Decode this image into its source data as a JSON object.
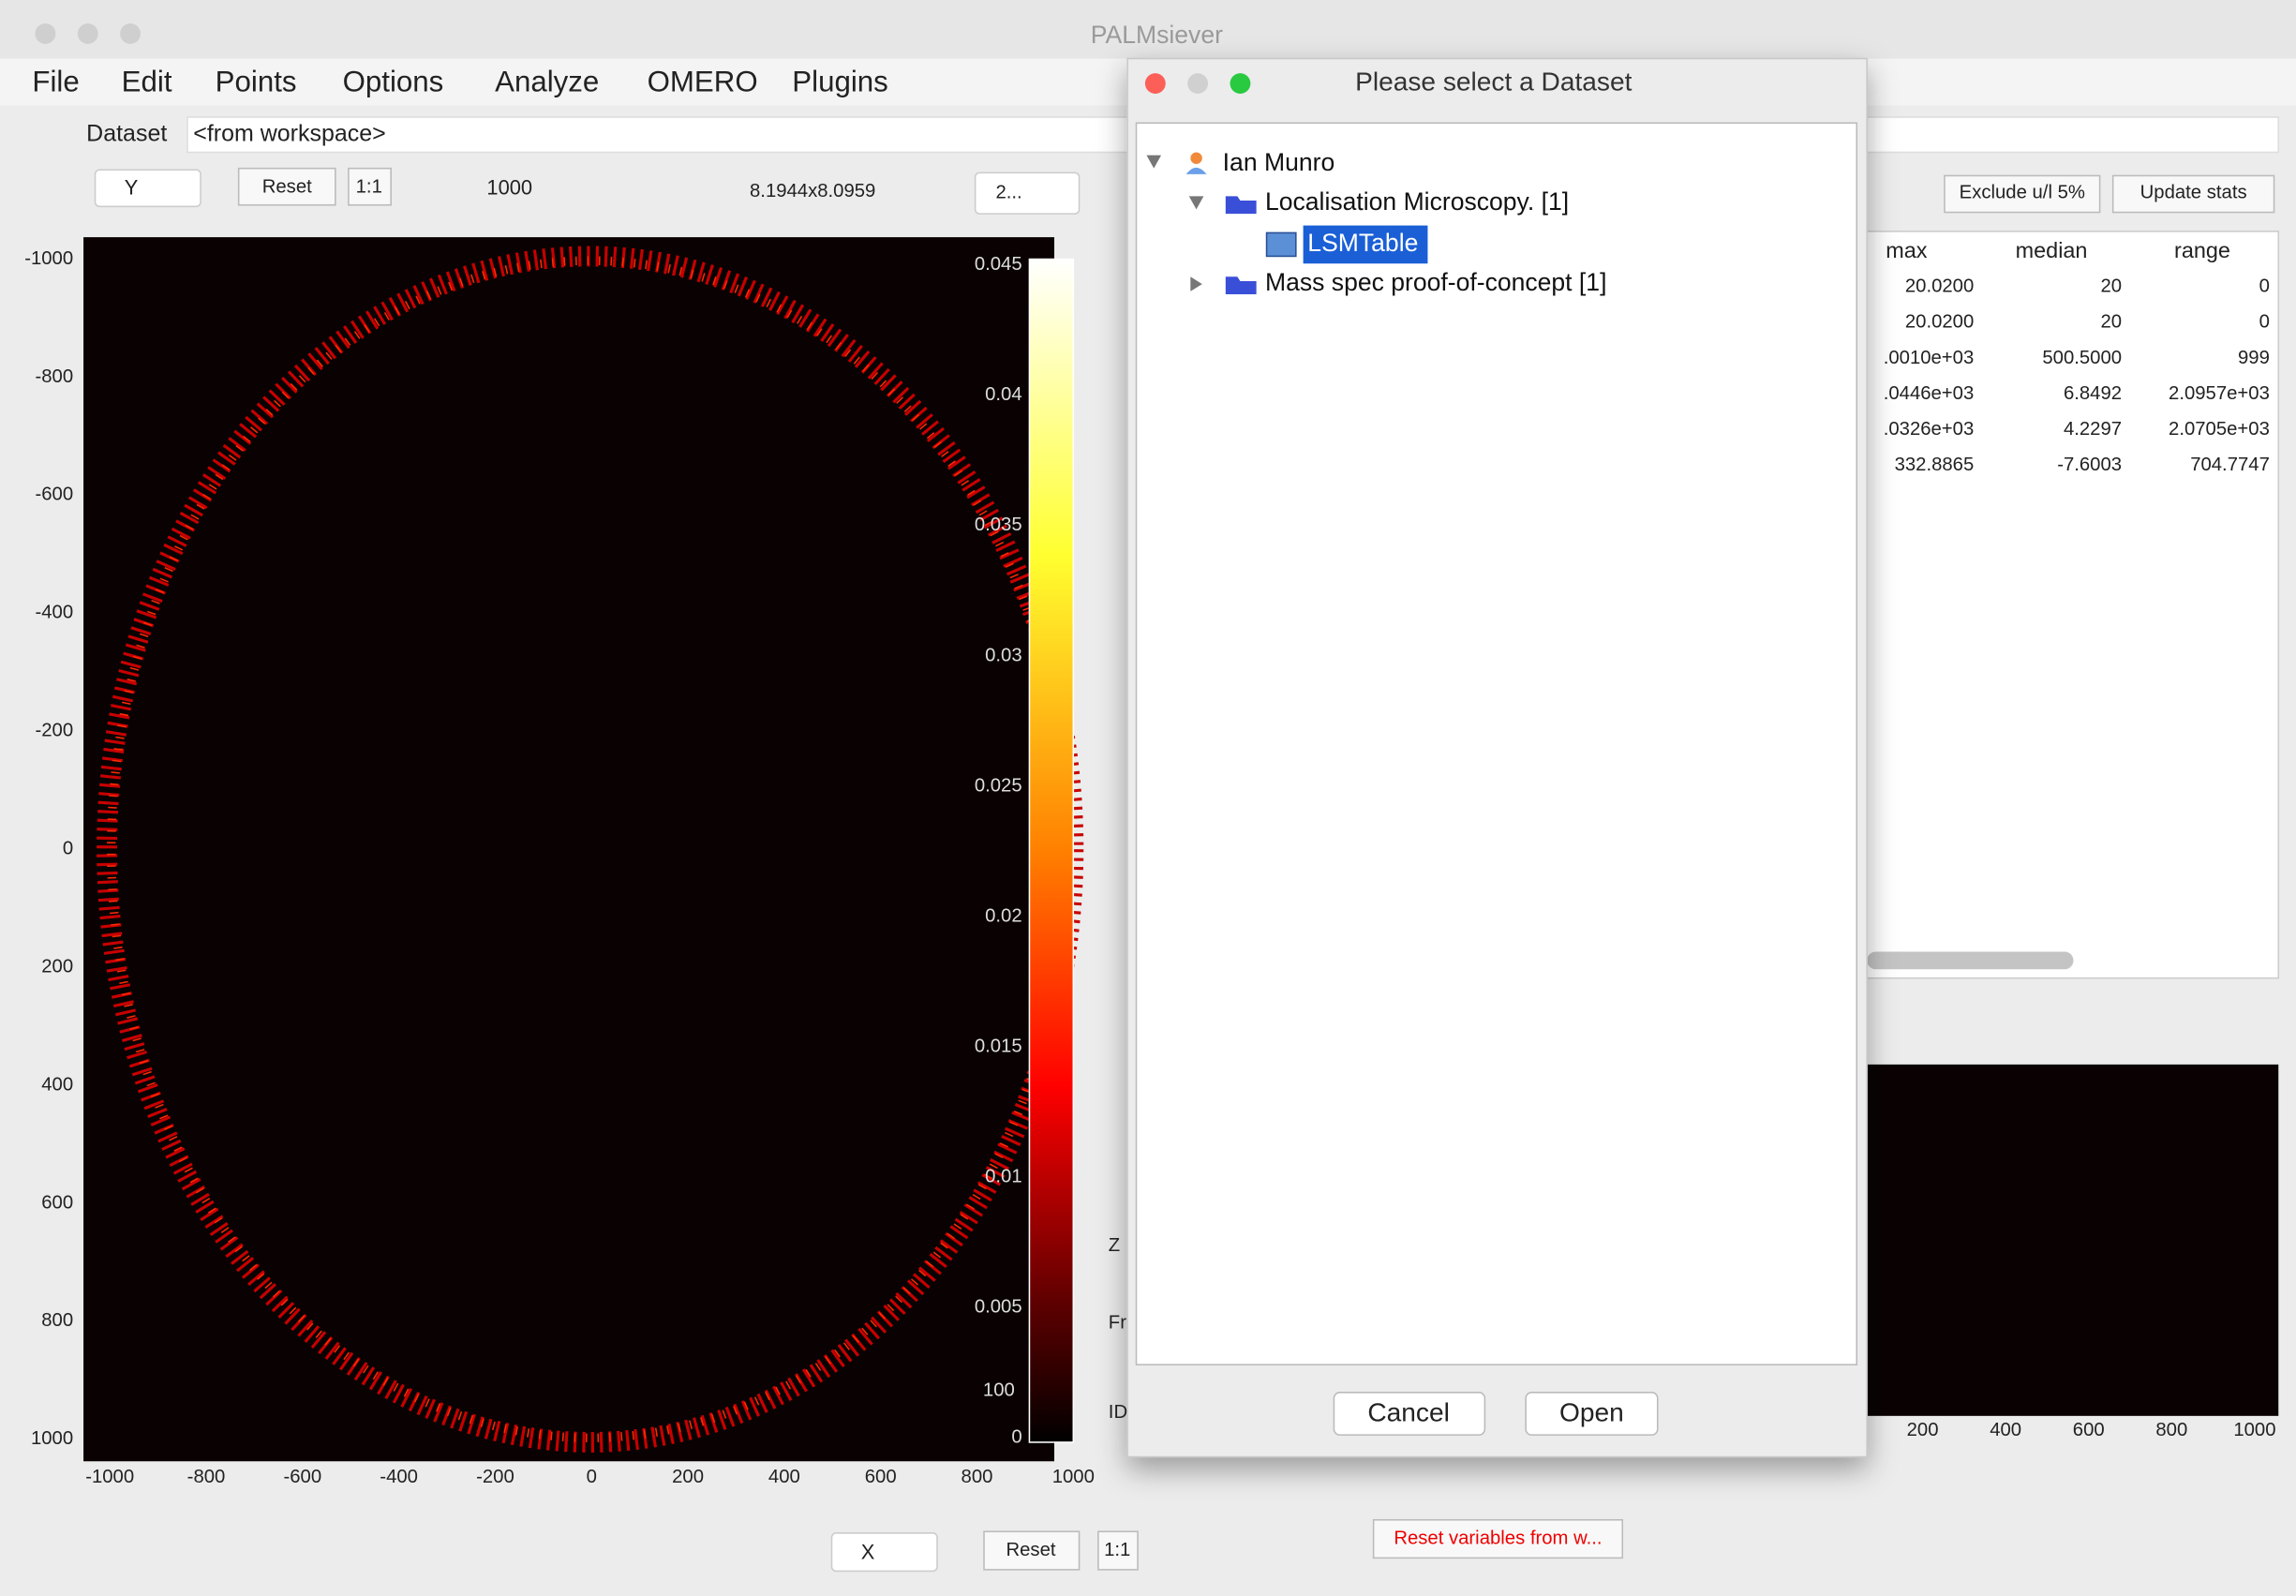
{
  "window": {
    "title": "PALMsiever"
  },
  "menu": [
    "File",
    "Edit",
    "Points",
    "Options",
    "Analyze",
    "OMERO",
    "Plugins"
  ],
  "toolbar": {
    "dataset_label": "Dataset",
    "dataset_value": "<from workspace>",
    "y_select": "Y",
    "reset": "Reset",
    "one_to_one": "1:1",
    "points": "1000",
    "size": "8.1944x8.0959",
    "select2": "2..."
  },
  "plot": {
    "yticks": [
      "-1000",
      "-800",
      "-600",
      "-400",
      "-200",
      "0",
      "200",
      "400",
      "600",
      "800",
      "1000"
    ],
    "xticks": [
      "-1000",
      "-800",
      "-600",
      "-400",
      "-200",
      "0",
      "200",
      "400",
      "600",
      "800",
      "1000"
    ],
    "colorbar_ticks": [
      "0.045",
      "0.04",
      "0.035",
      "0.03",
      "0.025",
      "0.02",
      "0.015",
      "0.01",
      "0.005",
      "0"
    ],
    "colorbar_extra": "100"
  },
  "bottom": {
    "x_select": "X",
    "reset": "Reset",
    "one_to_one": "1:1",
    "reset_vars": "Reset variables from w..."
  },
  "stats": {
    "buttons": [
      "Exclude u/l 5%",
      "Update stats"
    ],
    "columns": [
      "max",
      "median",
      "range"
    ],
    "rows": [
      [
        "20.0200",
        "20",
        "0"
      ],
      [
        "20.0200",
        "20",
        "0"
      ],
      [
        ".0010e+03",
        "500.5000",
        "999"
      ],
      [
        ".0446e+03",
        "6.8492",
        "2.0957e+03"
      ],
      [
        ".0326e+03",
        "4.2297",
        "2.0705e+03"
      ],
      [
        "332.8865",
        "-7.6003",
        "704.7747"
      ]
    ]
  },
  "side_labels": [
    "Z",
    "Fr",
    "ID"
  ],
  "hist": {
    "xticks": [
      "200",
      "400",
      "600",
      "800",
      "1000"
    ]
  },
  "dialog": {
    "title": "Please select a Dataset",
    "tree": [
      {
        "label": "Ian Munro"
      },
      {
        "label": "Localisation Microscopy. [1]"
      },
      {
        "label": "LSMTable"
      },
      {
        "label": "Mass spec proof-of-concept [1]"
      }
    ],
    "cancel": "Cancel",
    "open": "Open"
  }
}
